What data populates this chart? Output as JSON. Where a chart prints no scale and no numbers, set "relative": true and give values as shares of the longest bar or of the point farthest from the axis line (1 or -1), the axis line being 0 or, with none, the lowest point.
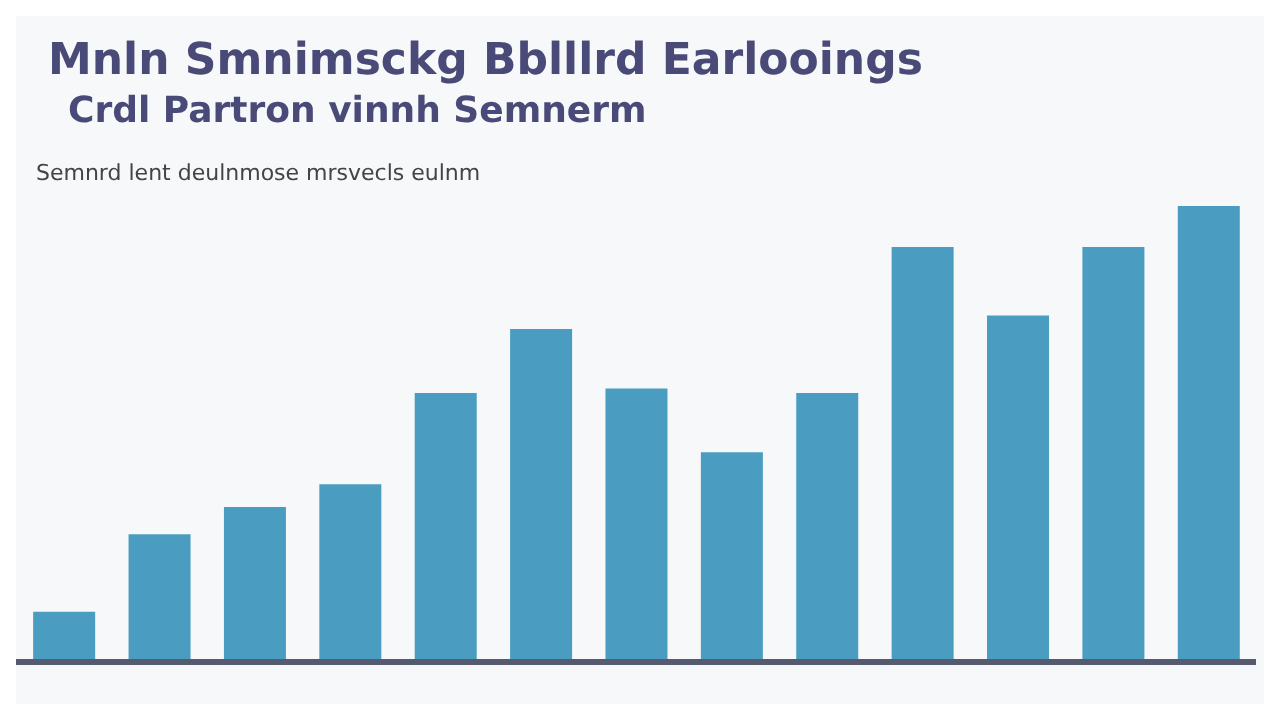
{
  "chart_data": {
    "type": "bar",
    "relative": true,
    "title": "Mnln Smnimsckg Bblllrd Earlooings",
    "subtitle": "Crdl Partron vinnh Semnerm",
    "annotations": [
      "Semnrd lent deulnmose mrsvecls eulnm"
    ],
    "categories": [
      null,
      null,
      null,
      null,
      null,
      null,
      null,
      null,
      null,
      null,
      null,
      null,
      null
    ],
    "values": [
      0.11,
      0.28,
      0.34,
      0.39,
      0.59,
      0.73,
      0.6,
      0.46,
      0.59,
      0.91,
      0.76,
      0.91,
      1
    ],
    "color": "#4a9cc0"
  }
}
